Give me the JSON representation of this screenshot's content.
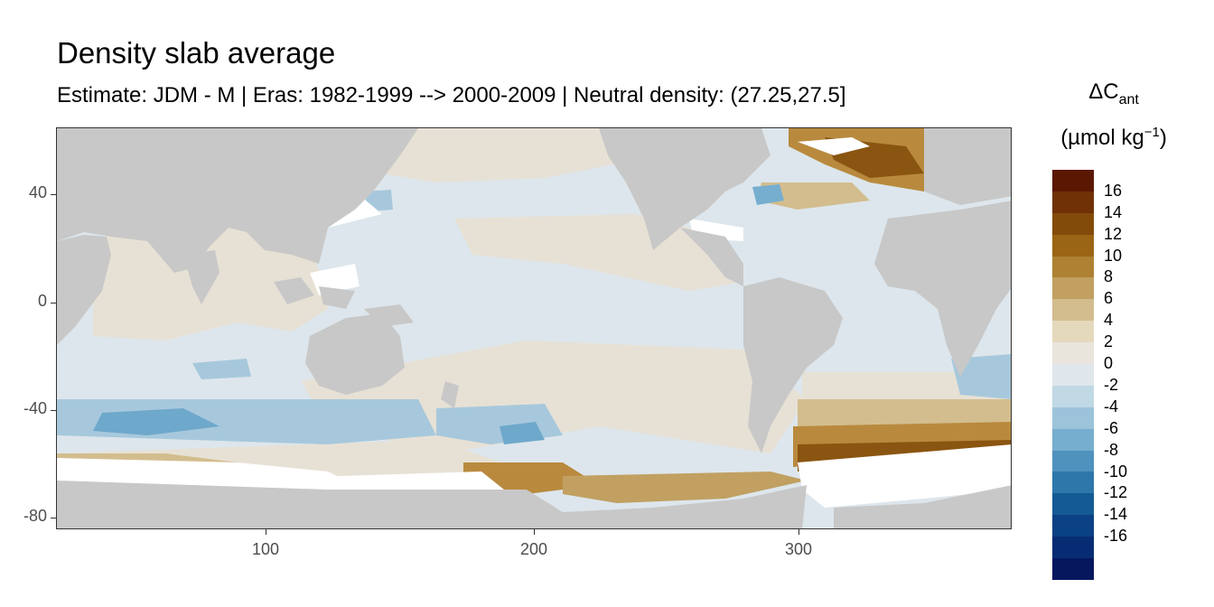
{
  "title": "Density slab average",
  "subtitle": "Estimate: JDM - M | Eras: 1982-1999 --> 2000-2009 | Neutral density: (27.25,27.5]",
  "legend": {
    "title_main": "ΔC",
    "title_sub": "ant",
    "unit_left": "(µmol kg",
    "unit_sup": "−1",
    "unit_right": ")",
    "labels": [
      "16",
      "14",
      "12",
      "10",
      "8",
      "6",
      "4",
      "2",
      "0",
      "-2",
      "-4",
      "-6",
      "-8",
      "-10",
      "-12",
      "-14",
      "-16"
    ],
    "colors": [
      "#5c1702",
      "#703106",
      "#834b0a",
      "#9a6514",
      "#ae8133",
      "#c1a061",
      "#d3bd8e",
      "#e5d9bd",
      "#e9e5dd",
      "#dfe7ec",
      "#c1d8e5",
      "#9cc3da",
      "#76aecf",
      "#4f92bd",
      "#2d77aa",
      "#145a94",
      "#0b4185",
      "#072c73",
      "#06175e"
    ]
  },
  "axes": {
    "x_ticks": [
      "100",
      "200",
      "300"
    ],
    "y_ticks": [
      "40",
      "0",
      "-40",
      "-80"
    ]
  },
  "colors": {
    "land": "#c8c8c8",
    "ocean_neg_small": "#dde6ec",
    "ocean_pos_small": "#e7e1d5",
    "no_data": "#ffffff",
    "brown_mid": "#b98a3e",
    "brown_dark": "#8a5510",
    "blue_light": "#a7c8dc",
    "blue_mid": "#6ea8cb"
  }
}
